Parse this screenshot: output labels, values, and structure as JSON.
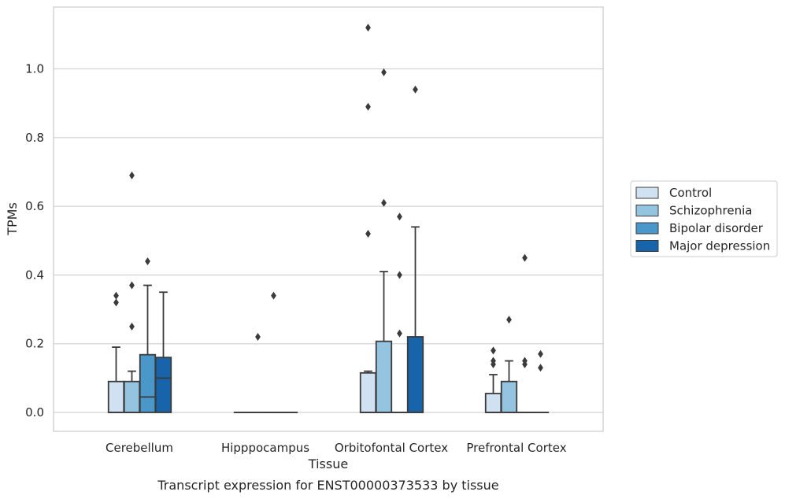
{
  "chart_data": {
    "type": "box",
    "xlabel": "Tissue",
    "ylabel": "TPMs",
    "caption": "Transcript expression for ENST00000373533 by tissue",
    "ylim": [
      -0.055,
      1.18
    ],
    "yticks": [
      0.0,
      0.2,
      0.4,
      0.6,
      0.8,
      1.0
    ],
    "ytick_labels": [
      "0.0",
      "0.2",
      "0.4",
      "0.6",
      "0.8",
      "1.0"
    ],
    "grid": "horizontal",
    "legend_position": "right",
    "categories": [
      "Cerebellum",
      "Hipppocampus",
      "Orbitofontal Cortex",
      "Prefrontal Cortex"
    ],
    "series": [
      {
        "name": "Control",
        "color": "#d0e1f2",
        "boxes": [
          {
            "q1": 0.0,
            "median": 0.0,
            "q3": 0.09,
            "whislo": 0.0,
            "whishi": 0.19,
            "fliers": [
              0.32,
              0.34
            ]
          },
          {
            "q1": 0.0,
            "median": 0.0,
            "q3": 0.0,
            "whislo": 0.0,
            "whishi": 0.0,
            "fliers": []
          },
          {
            "q1": 0.0,
            "median": 0.0,
            "q3": 0.115,
            "whislo": 0.0,
            "whishi": 0.12,
            "fliers": [
              0.52,
              0.89,
              1.12
            ]
          },
          {
            "q1": 0.0,
            "median": 0.0,
            "q3": 0.055,
            "whislo": 0.0,
            "whishi": 0.11,
            "fliers": [
              0.14,
              0.15,
              0.18
            ]
          }
        ]
      },
      {
        "name": "Schizophrenia",
        "color": "#94c4df",
        "boxes": [
          {
            "q1": 0.0,
            "median": 0.0,
            "q3": 0.09,
            "whislo": 0.0,
            "whishi": 0.12,
            "fliers": [
              0.25,
              0.37,
              0.69
            ]
          },
          {
            "q1": 0.0,
            "median": 0.0,
            "q3": 0.0,
            "whislo": 0.0,
            "whishi": 0.0,
            "fliers": [
              0.22
            ]
          },
          {
            "q1": 0.0,
            "median": 0.0,
            "q3": 0.207,
            "whislo": 0.0,
            "whishi": 0.41,
            "fliers": [
              0.61,
              0.99
            ]
          },
          {
            "q1": 0.0,
            "median": 0.0,
            "q3": 0.09,
            "whislo": 0.0,
            "whishi": 0.15,
            "fliers": [
              0.27
            ]
          }
        ]
      },
      {
        "name": "Bipolar disorder",
        "color": "#4a98c9",
        "boxes": [
          {
            "q1": 0.0,
            "median": 0.045,
            "q3": 0.168,
            "whislo": 0.0,
            "whishi": 0.37,
            "fliers": [
              0.44
            ]
          },
          {
            "q1": 0.0,
            "median": 0.0,
            "q3": 0.0,
            "whislo": 0.0,
            "whishi": 0.0,
            "fliers": [
              0.34
            ]
          },
          {
            "q1": 0.0,
            "median": 0.0,
            "q3": 0.0,
            "whislo": 0.0,
            "whishi": 0.0,
            "fliers": [
              0.23,
              0.4,
              0.57
            ]
          },
          {
            "q1": 0.0,
            "median": 0.0,
            "q3": 0.0,
            "whislo": 0.0,
            "whishi": 0.0,
            "fliers": [
              0.14,
              0.15,
              0.45
            ]
          }
        ]
      },
      {
        "name": "Major depression",
        "color": "#1764ab",
        "boxes": [
          {
            "q1": 0.0,
            "median": 0.1,
            "q3": 0.16,
            "whislo": 0.0,
            "whishi": 0.35,
            "fliers": []
          },
          {
            "q1": 0.0,
            "median": 0.0,
            "q3": 0.0,
            "whislo": 0.0,
            "whishi": 0.0,
            "fliers": []
          },
          {
            "q1": 0.0,
            "median": 0.0,
            "q3": 0.22,
            "whislo": 0.0,
            "whishi": 0.54,
            "fliers": [
              0.94
            ]
          },
          {
            "q1": 0.0,
            "median": 0.0,
            "q3": 0.0,
            "whislo": 0.0,
            "whishi": 0.0,
            "fliers": [
              0.13,
              0.17
            ]
          }
        ]
      }
    ]
  }
}
